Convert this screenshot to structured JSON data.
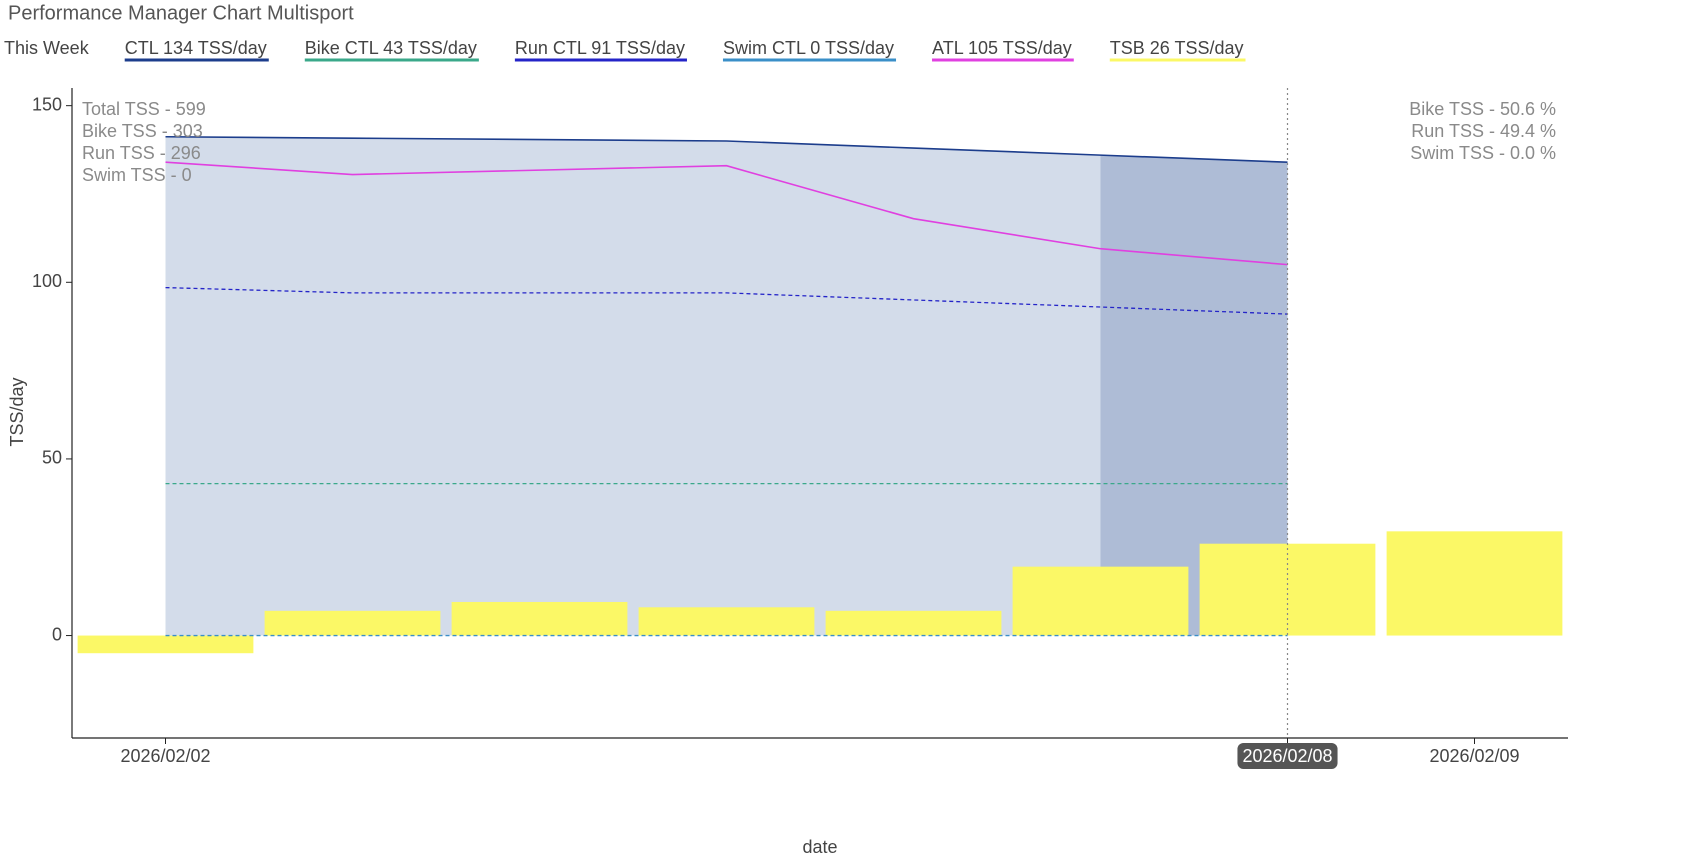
{
  "chart_data": {
    "type": "combo",
    "title": "Performance Manager Chart Multisport",
    "legend_prefix": "This Week",
    "y_label": "TSS/day",
    "x_label": "date",
    "ylim": [
      -29,
      155
    ],
    "yticks": [
      0,
      50,
      100,
      150
    ],
    "xlim": [
      "2026/02/01 12:00",
      "2026/02/09 12:00"
    ],
    "xticks": [
      "2026/02/02",
      "2026/02/08",
      "2026/02/09"
    ],
    "cursor_x": "2026/02/08",
    "highlight_range": [
      "2026/02/07",
      "2026/02/08"
    ],
    "area_color": "#d3dcea",
    "highlight_color": "#aebcd6",
    "grid": false,
    "left_notes": [
      "Total TSS - 599",
      "Bike TSS - 303",
      "Run TSS - 296",
      "Swim TSS - 0"
    ],
    "right_notes": [
      "Bike TSS - 50.6 %",
      "Run TSS - 49.4 %",
      "Swim TSS - 0.0 %"
    ],
    "series": [
      {
        "name": "CTL  134 TSS/day",
        "type": "line",
        "color": "#1c3d8c",
        "dash": false,
        "fill": true,
        "x": [
          "2026/02/02",
          "2026/02/03",
          "2026/02/05",
          "2026/02/06",
          "2026/02/07",
          "2026/02/08"
        ],
        "values": [
          141.2,
          140.8,
          140,
          138,
          136,
          134
        ]
      },
      {
        "name": "Bike CTL  43 TSS/day",
        "type": "line",
        "color": "#3aa88a",
        "dash": true,
        "fill": false,
        "x": [
          "2026/02/02",
          "2026/02/03",
          "2026/02/05",
          "2026/02/06",
          "2026/02/07",
          "2026/02/08"
        ],
        "values": [
          43,
          43,
          43,
          43,
          43,
          43
        ]
      },
      {
        "name": "Run CTL  91 TSS/day",
        "type": "line",
        "color": "#2424c8",
        "dash": true,
        "fill": false,
        "x": [
          "2026/02/02",
          "2026/02/03",
          "2026/02/05",
          "2026/02/06",
          "2026/02/07",
          "2026/02/08"
        ],
        "values": [
          98.5,
          97,
          97,
          95,
          93,
          91
        ]
      },
      {
        "name": "Swim CTL  0 TSS/day",
        "type": "line",
        "color": "#3a8fc8",
        "dash": true,
        "fill": false,
        "x": [
          "2026/02/02",
          "2026/02/03",
          "2026/02/05",
          "2026/02/06",
          "2026/02/07",
          "2026/02/08"
        ],
        "values": [
          0,
          0,
          0,
          0,
          0,
          0
        ]
      },
      {
        "name": "ATL  105 TSS/day",
        "type": "line",
        "color": "#e040e0",
        "dash": false,
        "fill": false,
        "x": [
          "2026/02/02",
          "2026/02/03",
          "2026/02/05",
          "2026/02/06",
          "2026/02/07",
          "2026/02/08"
        ],
        "values": [
          134,
          130.5,
          133,
          118,
          109.5,
          105
        ]
      },
      {
        "name": "TSB  26 TSS/day",
        "type": "bar",
        "color": "#fbf866",
        "dash": false,
        "fill": false,
        "x": [
          "2026/02/02",
          "2026/02/03",
          "2026/02/04",
          "2026/02/05",
          "2026/02/06",
          "2026/02/07",
          "2026/02/08",
          "2026/02/09"
        ],
        "values": [
          -5,
          7,
          9.5,
          8,
          7,
          19.5,
          26,
          29.5
        ]
      }
    ]
  }
}
